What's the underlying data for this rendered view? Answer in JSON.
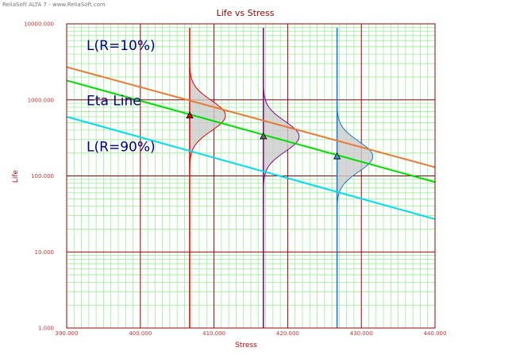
{
  "window_title": "ReliaSoft ALTA 7 - www.ReliaSoft.com",
  "chart_data": {
    "type": "line",
    "title": "Life vs Stress",
    "xlabel": "Stress",
    "ylabel": "Life",
    "xlim": [
      390,
      440
    ],
    "ylim": [
      1,
      10000
    ],
    "yscale": "log",
    "grid": true,
    "x_ticks": [
      "390.000",
      "400.000",
      "410.000",
      "420.000",
      "430.000",
      "440.000"
    ],
    "y_ticks": [
      "1.000",
      "10.000",
      "100.000",
      "1000.000",
      "10000.000"
    ],
    "colors": {
      "grid_major": "#990000",
      "grid_minor": "#99ee99",
      "r10": "#ee7733",
      "eta": "#00dd00",
      "r90": "#00ddee",
      "pdf_fill": "#cccccc"
    },
    "series": [
      {
        "name": "L(R=10%)",
        "color": "#ee7733",
        "x": [
          390,
          440
        ],
        "y": [
          2700,
          130
        ]
      },
      {
        "name": "Eta Line",
        "color": "#00dd00",
        "x": [
          390,
          440
        ],
        "y": [
          1800,
          83
        ]
      },
      {
        "name": "L(R=90%)",
        "color": "#00ddee",
        "x": [
          390,
          440
        ],
        "y": [
          600,
          27
        ]
      }
    ],
    "annotations": [
      {
        "text": "L(R=10%)",
        "x": 392.7,
        "y": 4500
      },
      {
        "text": "Eta Line",
        "x": 392.7,
        "y": 850
      },
      {
        "text": "L(R=90%)",
        "x": 392.7,
        "y": 210
      }
    ],
    "stress_levels": [
      {
        "stress": 406.7,
        "eta": 620,
        "color": "#dd0000",
        "marker_color": "#dd0000"
      },
      {
        "stress": 416.7,
        "eta": 330,
        "color": "#880088",
        "marker_color": "#666666"
      },
      {
        "stress": 426.7,
        "eta": 180,
        "color": "#1177cc",
        "marker_color": "#3399cc"
      }
    ]
  }
}
